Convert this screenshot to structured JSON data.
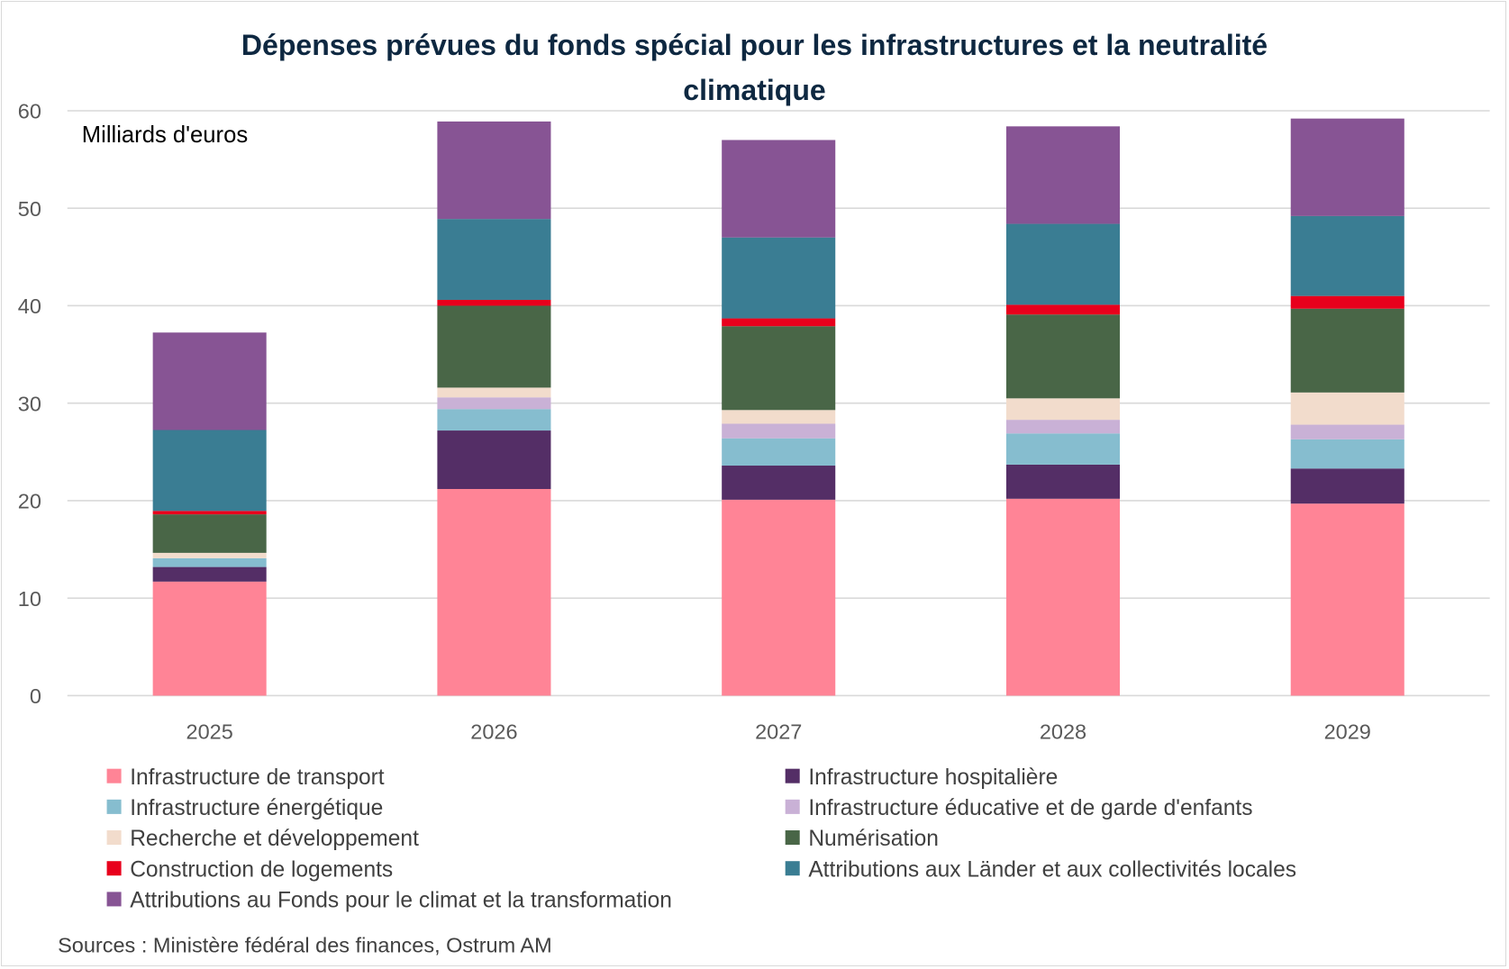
{
  "chart_data": {
    "type": "bar",
    "stacked": true,
    "title": "Dépenses prévues du fonds spécial pour les infrastructures et la neutralité climatique",
    "title_lines": [
      "Dépenses prévues du fonds spécial pour les infrastructures et la neutralité",
      "climatique"
    ],
    "unit_label": "Milliards d'euros",
    "source": "Sources : Ministère fédéral des finances, Ostrum AM",
    "categories": [
      "2025",
      "2026",
      "2027",
      "2028",
      "2029"
    ],
    "ylim": [
      0,
      60
    ],
    "yticks": [
      0,
      10,
      20,
      30,
      40,
      50,
      60
    ],
    "grid": true,
    "legend_position": "bottom",
    "series": [
      {
        "name": "Infrastructure de transport",
        "color": "#ff8496",
        "values": [
          11.7,
          21.2,
          20.1,
          20.2,
          19.7
        ]
      },
      {
        "name": "Infrastructure hospitalière",
        "color": "#542e66",
        "values": [
          1.5,
          6.0,
          3.5,
          3.5,
          3.6
        ]
      },
      {
        "name": "Infrastructure énergétique",
        "color": "#86bdcf",
        "values": [
          0.9,
          2.2,
          2.8,
          3.2,
          3.0
        ]
      },
      {
        "name": "Infrastructure éducative et de garde d'enfants",
        "color": "#c9b1d6",
        "values": [
          0.0,
          1.2,
          1.5,
          1.4,
          1.5
        ]
      },
      {
        "name": "Recherche et développement",
        "color": "#f2dccc",
        "values": [
          0.55,
          1.0,
          1.4,
          2.2,
          3.3
        ]
      },
      {
        "name": "Numérisation",
        "color": "#496647",
        "values": [
          3.95,
          8.4,
          8.6,
          8.6,
          8.6
        ]
      },
      {
        "name": "Construction de logements",
        "color": "#e8001c",
        "values": [
          0.35,
          0.6,
          0.8,
          1.0,
          1.3
        ]
      },
      {
        "name": "Attributions aux Länder et aux collectivités locales",
        "color": "#3a7d93",
        "values": [
          8.3,
          8.3,
          8.3,
          8.3,
          8.2
        ]
      },
      {
        "name": "Attributions au Fonds pour le climat et la transformation",
        "color": "#875494",
        "values": [
          10.0,
          10.0,
          10.0,
          10.0,
          10.0
        ]
      }
    ]
  }
}
